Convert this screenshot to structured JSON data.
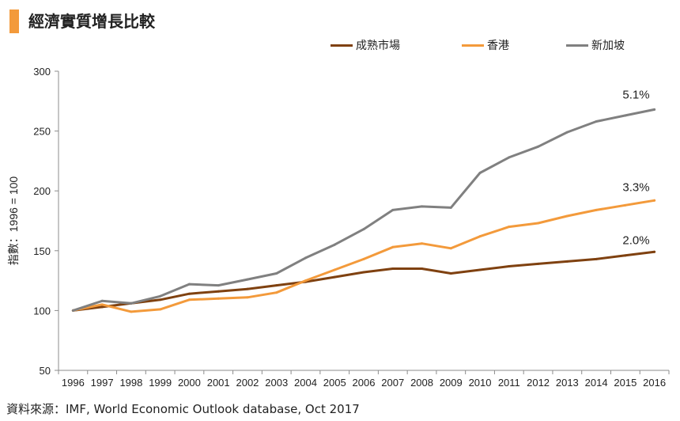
{
  "title": "經濟實質增長比較",
  "source": "資料來源：IMF, World Economic Outlook database, Oct 2017",
  "legend": [
    {
      "label": "成熟市場",
      "color": "#7f4110"
    },
    {
      "label": "香港",
      "color": "#f39a3b"
    },
    {
      "label": "新加坡",
      "color": "#808080"
    }
  ],
  "chart_data": {
    "type": "line",
    "title": "經濟實質增長比較",
    "xlabel": "",
    "ylabel": "指數：1996 = 100",
    "ylim": [
      50,
      300
    ],
    "yticks": [
      50,
      100,
      150,
      200,
      250,
      300
    ],
    "grid": false,
    "legend_position": "top-right",
    "categories": [
      "1996",
      "1997",
      "1998",
      "1999",
      "2000",
      "2001",
      "2002",
      "2003",
      "2004",
      "2005",
      "2006",
      "2007",
      "2008",
      "2009",
      "2010",
      "2011",
      "2012",
      "2013",
      "2014",
      "2015",
      "2016"
    ],
    "series": [
      {
        "name": "成熟市場",
        "color": "#7f4110",
        "end_label": "2.0%",
        "values": [
          100,
          103,
          106,
          109,
          114,
          116,
          118,
          121,
          124,
          128,
          132,
          135,
          135,
          131,
          134,
          137,
          139,
          141,
          143,
          146,
          149
        ]
      },
      {
        "name": "香港",
        "color": "#f39a3b",
        "end_label": "3.3%",
        "values": [
          100,
          105,
          99,
          101,
          109,
          110,
          111,
          115,
          125,
          134,
          143,
          153,
          156,
          152,
          162,
          170,
          173,
          179,
          184,
          188,
          192
        ]
      },
      {
        "name": "新加坡",
        "color": "#808080",
        "end_label": "5.1%",
        "values": [
          100,
          108,
          106,
          112,
          122,
          121,
          126,
          131,
          144,
          155,
          168,
          184,
          187,
          186,
          215,
          228,
          237,
          249,
          258,
          263,
          268
        ]
      }
    ]
  }
}
